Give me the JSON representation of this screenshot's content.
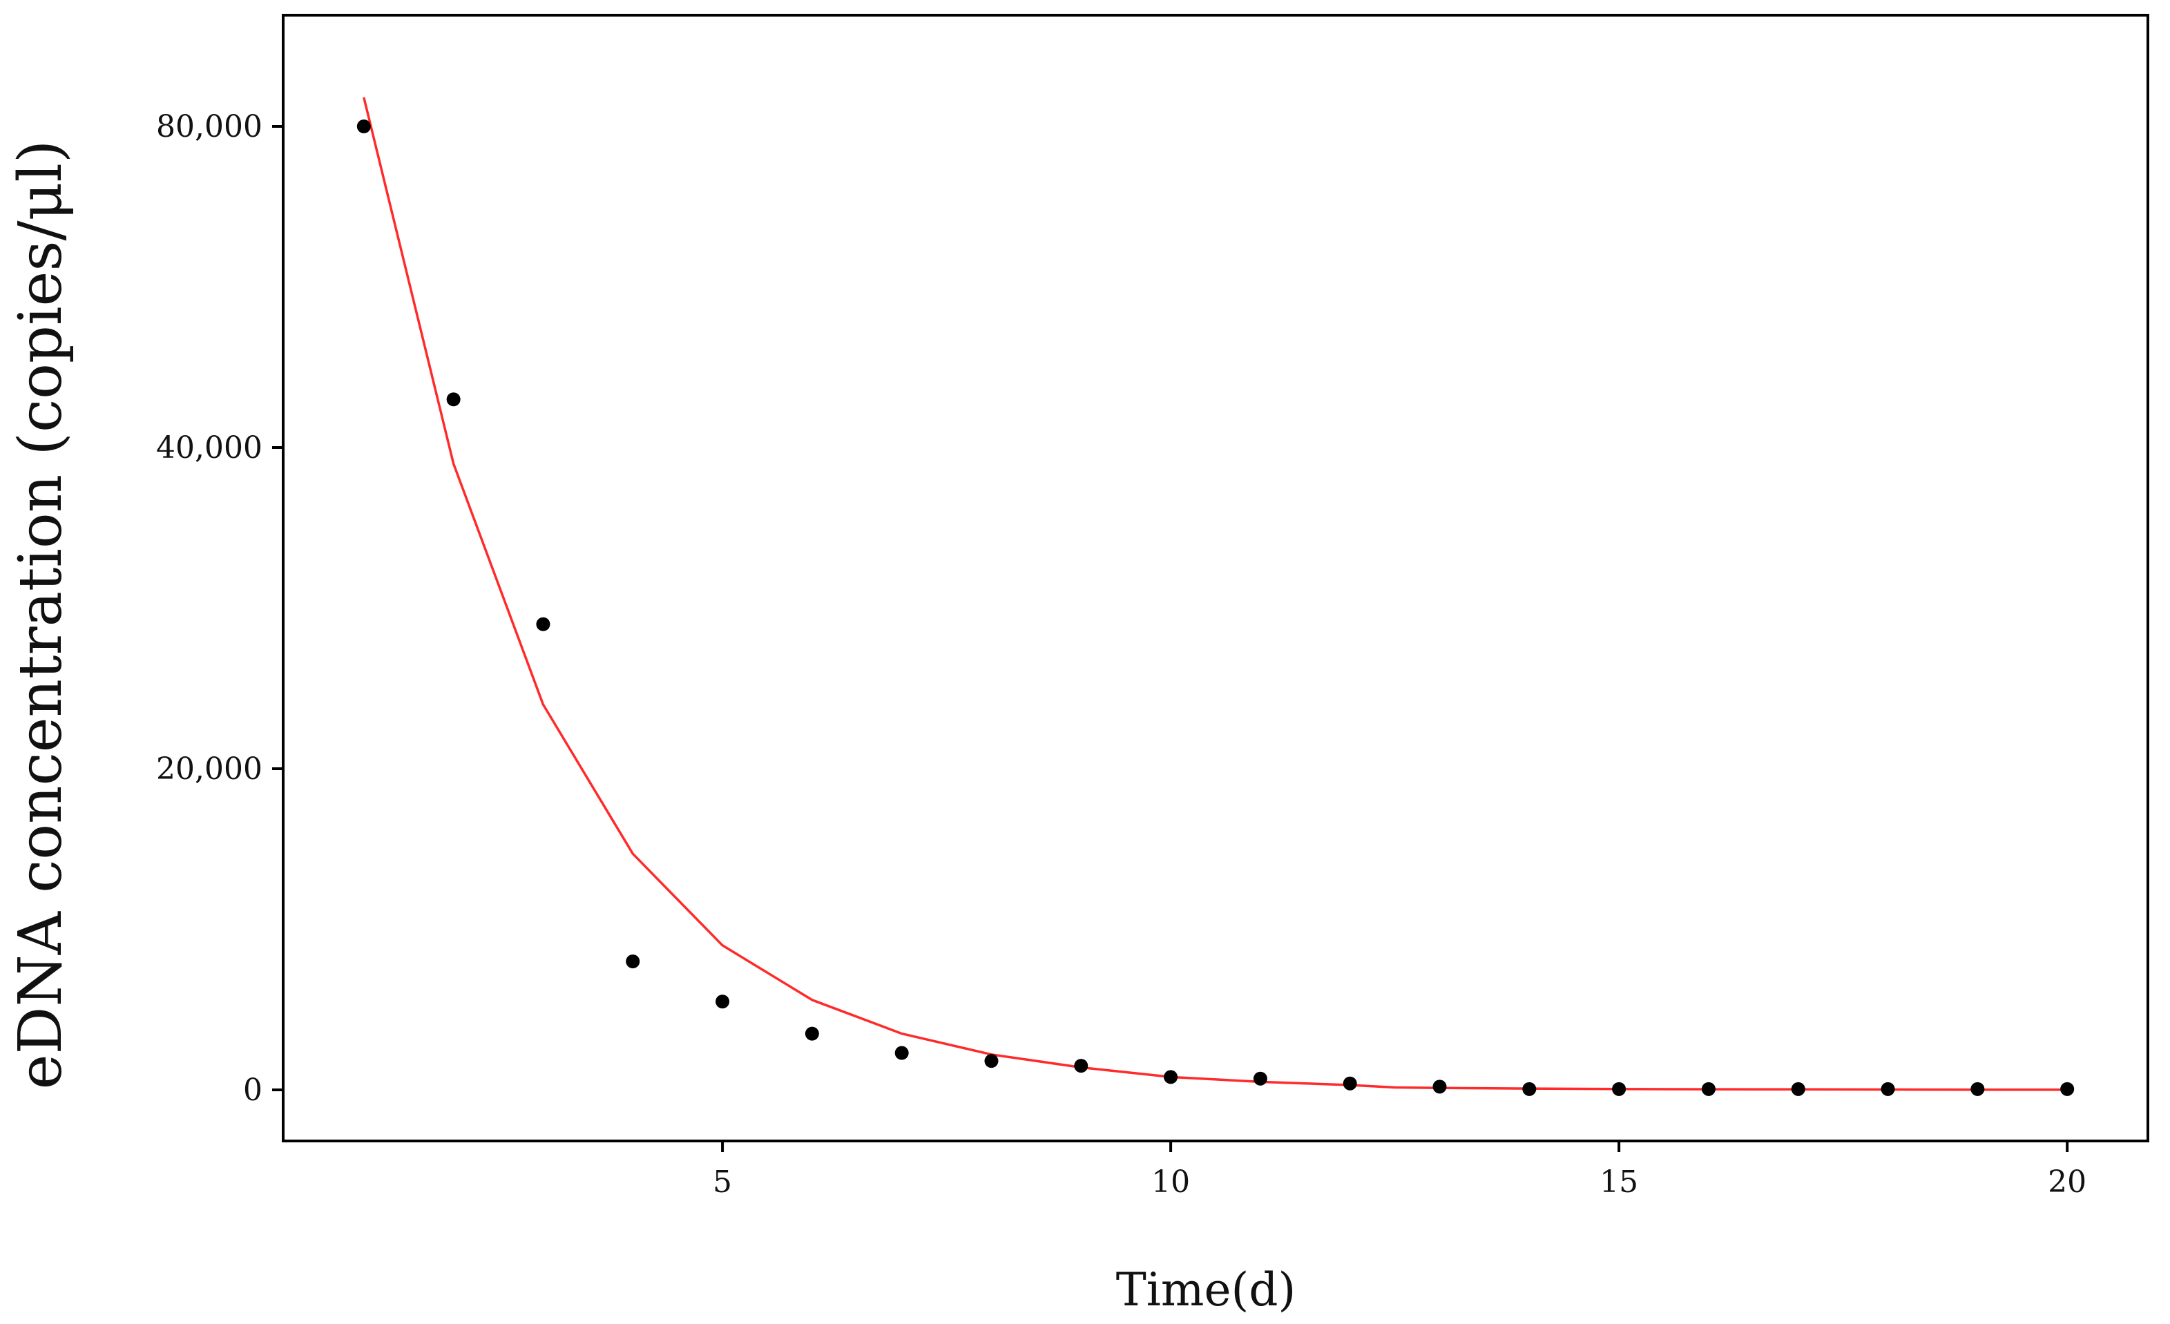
{
  "chart_data": {
    "type": "scatter",
    "title": "",
    "xlabel": "Time(d)",
    "ylabel": "eDNA concentration (copies/μl)",
    "xlim": [
      0.1,
      20.9
    ],
    "ylim": [
      -3200,
      87000
    ],
    "x_ticks": [
      5,
      10,
      15,
      20
    ],
    "x_tick_labels": [
      "5",
      "10",
      "15",
      "20"
    ],
    "y_ticks": [
      0,
      20000,
      40000,
      80000
    ],
    "y_tick_labels": [
      "0",
      "20,000",
      "40,000",
      "80,000"
    ],
    "y_scale": "piecewise-linear (20,000 per step up to 40,000, then 40,000 per step)",
    "y_tick_positions": [
      0,
      20000,
      40000,
      60000
    ],
    "grid": false,
    "legend": "none",
    "series": [
      {
        "kind": "scatter",
        "color": "#000000",
        "x": [
          1,
          2,
          3,
          4,
          5,
          6,
          7,
          8,
          9,
          10,
          11,
          12,
          13,
          14,
          15,
          16,
          17,
          18,
          19,
          20
        ],
        "y": [
          80000,
          46000,
          29000,
          8000,
          5500,
          3500,
          2300,
          1800,
          1500,
          800,
          700,
          400,
          200,
          50,
          50,
          50,
          50,
          50,
          50,
          50
        ]
      },
      {
        "kind": "line",
        "color": "#ff2a2a",
        "x": [
          1,
          2,
          3,
          4,
          5,
          6,
          7,
          8,
          9,
          10,
          11,
          12,
          12.5,
          13,
          14,
          15,
          16,
          17,
          18,
          19,
          20
        ],
        "y": [
          83600,
          39000,
          24000,
          14700,
          9000,
          5600,
          3500,
          2200,
          1400,
          800,
          500,
          300,
          150,
          120,
          80,
          50,
          40,
          30,
          20,
          15,
          10
        ]
      }
    ]
  }
}
